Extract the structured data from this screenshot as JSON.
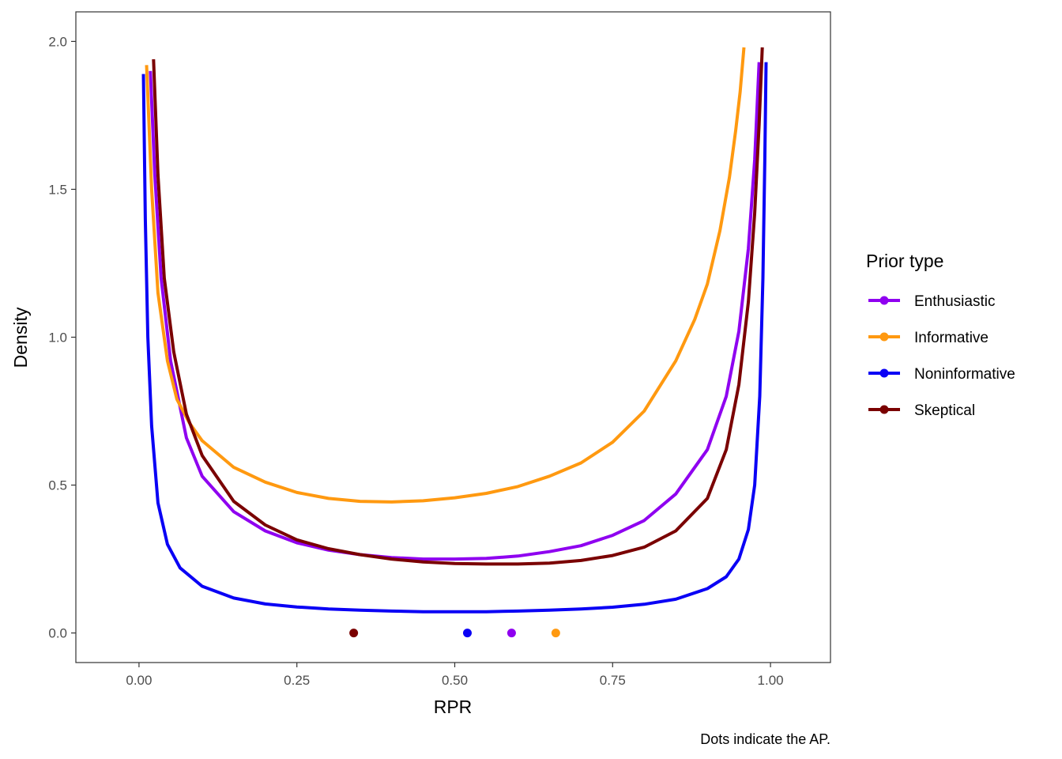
{
  "chart_data": {
    "type": "line",
    "title": "",
    "xlabel": "RPR",
    "ylabel": "Density",
    "caption": "Dots indicate the AP.",
    "xlim": [
      -0.1,
      1.095
    ],
    "ylim": [
      -0.1,
      2.1
    ],
    "x_ticks": [
      0.0,
      0.25,
      0.5,
      0.75,
      1.0
    ],
    "x_tick_labels": [
      "0.00",
      "0.25",
      "0.50",
      "0.75",
      "1.00"
    ],
    "y_ticks": [
      0.0,
      0.5,
      1.0,
      1.5,
      2.0
    ],
    "y_tick_labels": [
      "0.0",
      "0.5",
      "1.0",
      "1.5",
      "2.0"
    ],
    "grid": false,
    "legend": {
      "title": "Prior type",
      "placement": "right"
    },
    "series": [
      {
        "name": "Enthusiastic",
        "color": "#8F00F0",
        "x": [
          0.018,
          0.025,
          0.035,
          0.05,
          0.075,
          0.1,
          0.15,
          0.2,
          0.25,
          0.3,
          0.35,
          0.4,
          0.45,
          0.5,
          0.55,
          0.6,
          0.65,
          0.7,
          0.75,
          0.8,
          0.85,
          0.9,
          0.93,
          0.95,
          0.965,
          0.975,
          0.982
        ],
        "y": [
          1.9,
          1.55,
          1.2,
          0.92,
          0.66,
          0.53,
          0.41,
          0.345,
          0.305,
          0.28,
          0.265,
          0.255,
          0.25,
          0.25,
          0.252,
          0.26,
          0.275,
          0.295,
          0.33,
          0.38,
          0.47,
          0.62,
          0.8,
          1.02,
          1.3,
          1.6,
          1.93
        ]
      },
      {
        "name": "Informative",
        "color": "#FF9910",
        "x": [
          0.012,
          0.02,
          0.03,
          0.045,
          0.06,
          0.08,
          0.1,
          0.15,
          0.2,
          0.25,
          0.3,
          0.35,
          0.4,
          0.45,
          0.5,
          0.55,
          0.6,
          0.65,
          0.7,
          0.75,
          0.8,
          0.85,
          0.88,
          0.9,
          0.92,
          0.935,
          0.945,
          0.952,
          0.958
        ],
        "y": [
          1.92,
          1.5,
          1.15,
          0.92,
          0.79,
          0.71,
          0.65,
          0.56,
          0.51,
          0.475,
          0.455,
          0.445,
          0.443,
          0.447,
          0.457,
          0.472,
          0.495,
          0.53,
          0.575,
          0.645,
          0.75,
          0.92,
          1.06,
          1.18,
          1.36,
          1.54,
          1.7,
          1.83,
          1.98
        ]
      },
      {
        "name": "Noninformative",
        "color": "#0A00F5",
        "x": [
          0.007,
          0.01,
          0.014,
          0.02,
          0.03,
          0.045,
          0.065,
          0.1,
          0.15,
          0.2,
          0.25,
          0.3,
          0.35,
          0.4,
          0.45,
          0.5,
          0.55,
          0.6,
          0.65,
          0.7,
          0.75,
          0.8,
          0.85,
          0.9,
          0.93,
          0.95,
          0.965,
          0.975,
          0.983,
          0.988,
          0.991,
          0.993
        ],
        "y": [
          1.89,
          1.4,
          1.0,
          0.7,
          0.44,
          0.3,
          0.22,
          0.158,
          0.118,
          0.098,
          0.088,
          0.081,
          0.077,
          0.074,
          0.072,
          0.072,
          0.072,
          0.074,
          0.077,
          0.081,
          0.087,
          0.097,
          0.114,
          0.15,
          0.19,
          0.25,
          0.35,
          0.5,
          0.8,
          1.2,
          1.6,
          1.93
        ]
      },
      {
        "name": "Skeptical",
        "color": "#7A0000",
        "x": [
          0.023,
          0.03,
          0.04,
          0.055,
          0.075,
          0.1,
          0.15,
          0.2,
          0.25,
          0.3,
          0.35,
          0.4,
          0.45,
          0.5,
          0.55,
          0.6,
          0.65,
          0.7,
          0.75,
          0.8,
          0.85,
          0.9,
          0.93,
          0.95,
          0.965,
          0.975,
          0.982,
          0.987
        ],
        "y": [
          1.94,
          1.55,
          1.2,
          0.95,
          0.74,
          0.6,
          0.445,
          0.365,
          0.315,
          0.285,
          0.265,
          0.25,
          0.24,
          0.235,
          0.233,
          0.233,
          0.236,
          0.245,
          0.262,
          0.29,
          0.345,
          0.455,
          0.62,
          0.84,
          1.12,
          1.42,
          1.72,
          1.98
        ]
      }
    ],
    "ap_points": [
      {
        "series": "Skeptical",
        "x": 0.34,
        "y": 0.0
      },
      {
        "series": "Noninformative",
        "x": 0.52,
        "y": 0.0
      },
      {
        "series": "Enthusiastic",
        "x": 0.59,
        "y": 0.0
      },
      {
        "series": "Informative",
        "x": 0.66,
        "y": 0.0
      }
    ]
  }
}
